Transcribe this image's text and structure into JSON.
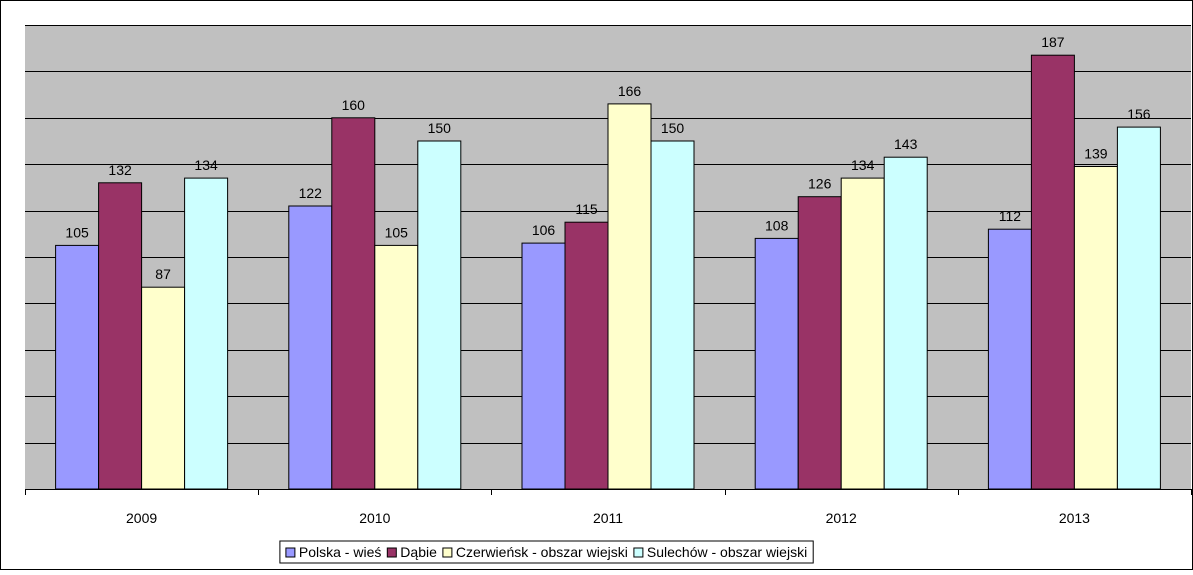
{
  "chart_data": {
    "type": "bar",
    "title": "",
    "xlabel": "",
    "ylabel": "",
    "categories": [
      "2009",
      "2010",
      "2011",
      "2012",
      "2013"
    ],
    "series": [
      {
        "name": "Polska - wieś",
        "color": "#9999FF",
        "values": [
          105,
          122,
          106,
          108,
          112
        ]
      },
      {
        "name": "Dąbie",
        "color": "#993366",
        "values": [
          132,
          160,
          115,
          126,
          187
        ]
      },
      {
        "name": "Czerwieńsk - obszar wiejski",
        "color": "#FFFFCC",
        "values": [
          87,
          105,
          166,
          134,
          139
        ]
      },
      {
        "name": "Sulechów - obszar wiejski",
        "color": "#CCFFFF",
        "values": [
          134,
          150,
          150,
          143,
          156
        ]
      }
    ],
    "ylim": [
      0,
      200
    ],
    "grid": true,
    "plot_background": "#C0C0C0",
    "legend_position": "bottom"
  }
}
